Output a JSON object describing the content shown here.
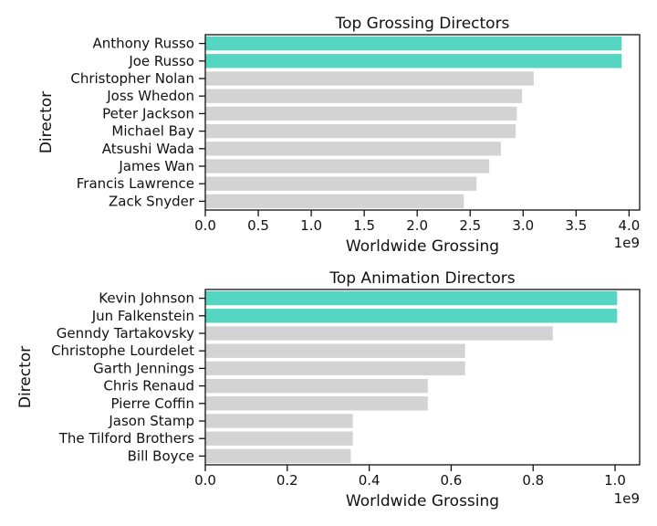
{
  "chart_data": [
    {
      "type": "bar",
      "orientation": "horizontal",
      "title": "Top Grossing Directors",
      "xlabel": "Worldwide Grossing",
      "ylabel": "Director",
      "x_offset_label": "1e9",
      "xlim": [
        0,
        4.1
      ],
      "xticks": [
        0,
        0.5,
        1,
        1.5,
        2,
        2.5,
        3,
        3.5,
        4
      ],
      "xtick_labels": [
        "0.0",
        "0.5",
        "1.0",
        "1.5",
        "2.0",
        "2.5",
        "3.0",
        "3.5",
        "4.0"
      ],
      "highlight_color": "#55d6c2",
      "default_color": "#d3d3d3",
      "grid": false,
      "categories": [
        "Anthony Russo",
        "Joe Russo",
        "Christopher Nolan",
        "Joss Whedon",
        "Peter Jackson",
        "Michael Bay",
        "Atsushi Wada",
        "James Wan",
        "Francis Lawrence",
        "Zack Snyder"
      ],
      "values": [
        3.93,
        3.93,
        3.1,
        2.99,
        2.94,
        2.93,
        2.79,
        2.68,
        2.56,
        2.44
      ],
      "highlighted": [
        true,
        true,
        false,
        false,
        false,
        false,
        false,
        false,
        false,
        false
      ]
    },
    {
      "type": "bar",
      "orientation": "horizontal",
      "title": "Top Animation Directors",
      "xlabel": "Worldwide Grossing",
      "ylabel": "Director",
      "x_offset_label": "1e9",
      "xlim": [
        0,
        1.06
      ],
      "xticks": [
        0,
        0.2,
        0.4,
        0.6,
        0.8,
        1.0
      ],
      "xtick_labels": [
        "0.0",
        "0.2",
        "0.4",
        "0.6",
        "0.8",
        "1.0"
      ],
      "highlight_color": "#55d6c2",
      "default_color": "#d3d3d3",
      "grid": false,
      "categories": [
        "Kevin Johnson",
        "Jun Falkenstein",
        "Genndy Tartakovsky",
        "Christophe Lourdelet",
        "Garth Jennings",
        "Chris Renaud",
        "Pierre Coffin",
        "Jason Stamp",
        "The Tilford Brothers",
        "Bill Boyce"
      ],
      "values": [
        1.005,
        1.005,
        0.848,
        0.634,
        0.634,
        0.543,
        0.543,
        0.36,
        0.36,
        0.355
      ],
      "highlighted": [
        true,
        true,
        false,
        false,
        false,
        false,
        false,
        false,
        false,
        false
      ]
    }
  ]
}
